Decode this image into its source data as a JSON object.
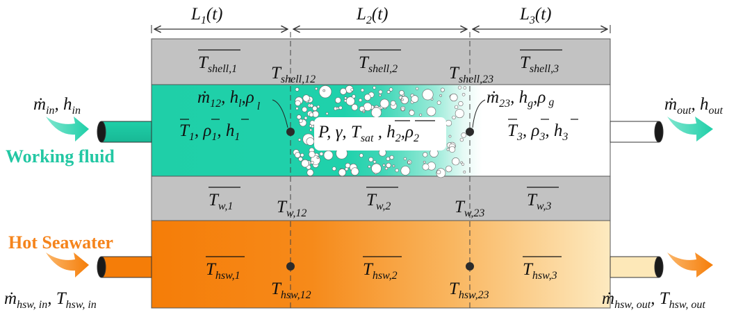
{
  "lengths": {
    "l1": {
      "main": "L",
      "sub": "1",
      "tail": "(t)"
    },
    "l2": {
      "main": "L",
      "sub": "2",
      "tail": "(t)"
    },
    "l3": {
      "main": "L",
      "sub": "3",
      "tail": "(t)"
    }
  },
  "shell": {
    "t1": {
      "main": "T",
      "sub": "shell,1"
    },
    "t2": {
      "main": "T",
      "sub": "shell,2"
    },
    "t3": {
      "main": "T",
      "sub": "shell,3"
    },
    "t12": {
      "main": "T",
      "sub": "shell,12"
    },
    "t23": {
      "main": "T",
      "sub": "shell,23"
    }
  },
  "wall": {
    "t1": {
      "main": "T",
      "sub": "w,1"
    },
    "t2": {
      "main": "T",
      "sub": "w,2"
    },
    "t3": {
      "main": "T",
      "sub": "w,3"
    },
    "t12": {
      "main": "T",
      "sub": "w,12"
    },
    "t23": {
      "main": "T",
      "sub": "w,23"
    }
  },
  "seawater": {
    "t1": {
      "main": "T",
      "sub": "hsw,1"
    },
    "t2": {
      "main": "T",
      "sub": "hsw,2"
    },
    "t3": {
      "main": "T",
      "sub": "hsw,3"
    },
    "t12": {
      "main": "T",
      "sub": "hsw,12"
    },
    "t23": {
      "main": "T",
      "sub": "hsw,23"
    }
  },
  "working_fluid": {
    "label": "Working fluid",
    "inlet": {
      "m": "ṁ",
      "m_sub": "in",
      "sep": ", ",
      "h": "h",
      "h_sub": "in"
    },
    "outlet": {
      "m": "ṁ",
      "m_sub": "out",
      "sep": ", ",
      "h": "h",
      "h_sub": "out"
    },
    "region1": {
      "a": "T",
      "a_sub": "1",
      "b": "ρ",
      "b_sub": "1",
      "c": "h",
      "c_sub": "1"
    },
    "region2": {
      "p": "P",
      "g": "γ",
      "t": "T",
      "t_sub": "sat",
      "h": "h",
      "h_sub": "2",
      "r": "ρ",
      "r_sub": "2"
    },
    "region3": {
      "a": "T",
      "a_sub": "3",
      "b": "ρ",
      "b_sub": "3",
      "c": "h",
      "c_sub": "3"
    },
    "node12": {
      "m": "ṁ",
      "m_sub": "12",
      "h": "h",
      "h_sub": "l",
      "r": "ρ",
      "r_sub": "l"
    },
    "node23": {
      "m": "ṁ",
      "m_sub": "23",
      "h": "h",
      "h_sub": "g",
      "r": "ρ",
      "r_sub": "g"
    }
  },
  "hot_seawater": {
    "label": "Hot Seawater",
    "inlet": {
      "m": "ṁ",
      "m_sub": "hsw, in",
      "sep": ", ",
      "t": "T",
      "t_sub": "hsw, in"
    },
    "outlet": {
      "m": "ṁ",
      "m_sub": "hsw, out",
      "sep": ", ",
      "t": "T",
      "t_sub": "hsw, out"
    }
  },
  "colors": {
    "working_fluid": "#1fcfa8",
    "working_fluid_text": "#22c7a3",
    "seawater_dark": "#f57f0a",
    "seawater_light": "#fde8b8",
    "seawater_text": "#f5841c",
    "shell_gray": "#c2c2c2",
    "node": "#2b2b2b"
  }
}
